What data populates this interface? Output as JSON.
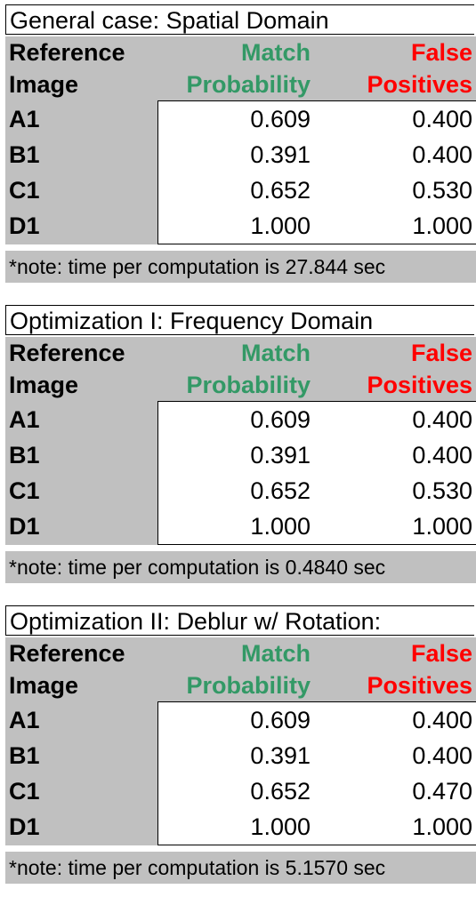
{
  "sections": [
    {
      "title": "General case: Spatial Domain",
      "headers": {
        "col0_line1": "Reference",
        "col0_line2": "Image",
        "col1_line1": "Match",
        "col1_line2": "Probability",
        "col2_line1": "False",
        "col2_line2": "Positives"
      },
      "rows": [
        {
          "label": "A1",
          "match": "0.609",
          "false_pos": "0.400"
        },
        {
          "label": "B1",
          "match": "0.391",
          "false_pos": "0.400"
        },
        {
          "label": "C1",
          "match": "0.652",
          "false_pos": "0.530"
        },
        {
          "label": "D1",
          "match": "1.000",
          "false_pos": "1.000"
        }
      ],
      "note": "*note: time per computation is 27.844 sec"
    },
    {
      "title": "Optimization I: Frequency Domain",
      "headers": {
        "col0_line1": "Reference",
        "col0_line2": "Image",
        "col1_line1": "Match",
        "col1_line2": "Probability",
        "col2_line1": "False",
        "col2_line2": "Positives"
      },
      "rows": [
        {
          "label": "A1",
          "match": "0.609",
          "false_pos": "0.400"
        },
        {
          "label": "B1",
          "match": "0.391",
          "false_pos": "0.400"
        },
        {
          "label": "C1",
          "match": "0.652",
          "false_pos": "0.530"
        },
        {
          "label": "D1",
          "match": "1.000",
          "false_pos": "1.000"
        }
      ],
      "note": "*note: time per computation is 0.4840 sec"
    },
    {
      "title": "Optimization II: Deblur w/ Rotation:",
      "headers": {
        "col0_line1": "Reference",
        "col0_line2": "Image",
        "col1_line1": "Match",
        "col1_line2": "Probability",
        "col2_line1": "False",
        "col2_line2": "Positives"
      },
      "rows": [
        {
          "label": "A1",
          "match": "0.609",
          "false_pos": "0.400"
        },
        {
          "label": "B1",
          "match": "0.391",
          "false_pos": "0.400"
        },
        {
          "label": "C1",
          "match": "0.652",
          "false_pos": "0.470"
        },
        {
          "label": "D1",
          "match": "1.000",
          "false_pos": "1.000"
        }
      ],
      "note": "*note: time per computation is 5.1570 sec"
    }
  ],
  "colors": {
    "header_bg": "#c0c0c0",
    "match_color": "#339966",
    "false_color": "#ff0000"
  }
}
